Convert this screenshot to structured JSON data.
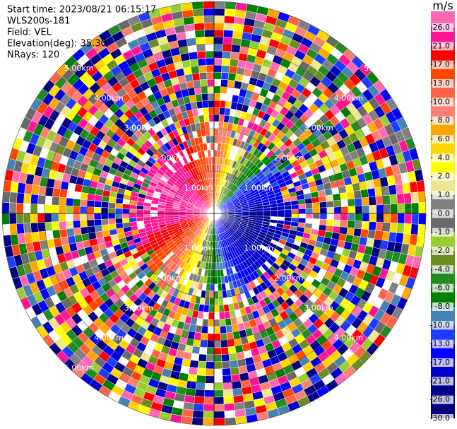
{
  "chart_data": {
    "type": "ppi",
    "annotations": [
      "Start time: 2023/08/21 06:15:17",
      "WLS200s-181",
      "Field: VEL",
      "Elevation(deg): 35.30",
      "NRays: 120"
    ],
    "rlim": [
      0,
      5
    ],
    "rticks": [
      {
        "value": 1,
        "label": "1.00km"
      },
      {
        "value": 2,
        "label": "2.00km"
      },
      {
        "value": 3,
        "label": "3.00km"
      },
      {
        "value": 4,
        "label": "4.00km"
      },
      {
        "value": 5,
        "label": "5.00km"
      }
    ],
    "colorbar": {
      "label": "m/s",
      "ticks": [
        {
          "value": 26,
          "label": "26.0"
        },
        {
          "value": 21,
          "label": "21.0"
        },
        {
          "value": 17,
          "label": "17.0"
        },
        {
          "value": 13,
          "label": "13.0"
        },
        {
          "value": 10,
          "label": "10.0"
        },
        {
          "value": 8,
          "label": "8.0"
        },
        {
          "value": 6,
          "label": "6.0"
        },
        {
          "value": 4,
          "label": "4.0"
        },
        {
          "value": 2,
          "label": "2.0"
        },
        {
          "value": 1,
          "label": "1.0"
        },
        {
          "value": 0,
          "label": "0.0"
        },
        {
          "value": -1,
          "label": "-1.0"
        },
        {
          "value": -2,
          "label": "-2.0"
        },
        {
          "value": -4,
          "label": "-4.0"
        },
        {
          "value": -6,
          "label": "-6.0"
        },
        {
          "value": -8,
          "label": "-8.0"
        },
        {
          "value": -10,
          "label": "-10.0"
        },
        {
          "value": -13,
          "label": "-13.0"
        },
        {
          "value": -17,
          "label": "-17.0"
        },
        {
          "value": -21,
          "label": "-21.0"
        },
        {
          "value": -26,
          "label": "-26.0"
        },
        {
          "value": -30,
          "label": "-30.0"
        }
      ],
      "colors": [
        "#ff69b4",
        "#ff1493",
        "#ff0000",
        "#ff4500",
        "#ff6347",
        "#fa8072",
        "#ffa500",
        "#ffd700",
        "#ffff00",
        "#f0e68c",
        "#808080",
        "#696969",
        "#9acd32",
        "#6b8e23",
        "#228b22",
        "#008000",
        "#4682b4",
        "#1e3cff",
        "#0000ff",
        "#0000cd",
        "#00008b",
        "#000080"
      ]
    }
  }
}
